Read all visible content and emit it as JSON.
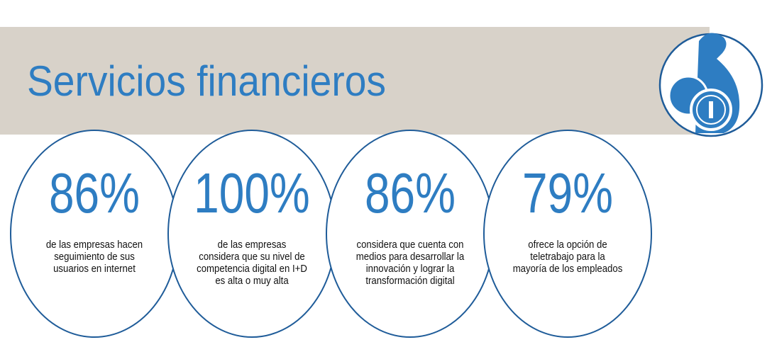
{
  "header": {
    "title": "Servicios financieros"
  },
  "stats": [
    {
      "value": "86%",
      "lines": [
        "de las empresas hacen",
        "seguimiento de sus",
        "usuarios en internet"
      ]
    },
    {
      "value": "100%",
      "lines": [
        "de las empresas",
        "considera que su nivel de",
        "competencia digital en I+D",
        "es alta o muy alta"
      ]
    },
    {
      "value": "86%",
      "lines": [
        "considera que cuenta con",
        "medios para desarrollar la",
        "innovación y lograr la",
        "transformación digital"
      ]
    },
    {
      "value": "79%",
      "lines": [
        "ofrece la opción de",
        "teletrabajo para la",
        "mayoría de los empleados"
      ]
    }
  ]
}
